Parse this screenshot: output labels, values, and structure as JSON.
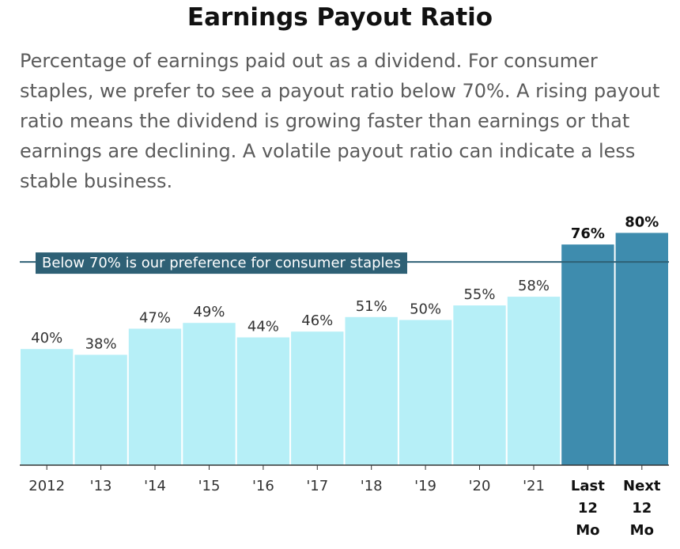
{
  "title": "Earnings Payout Ratio",
  "subtitle": "Percentage of earnings paid out as a dividend. For consumer staples, we prefer to see a payout ratio below 70%. A rising payout ratio means the dividend is growing faster than earnings or that earnings are declining. A volatile payout ratio can indicate a less stable business.",
  "colors": {
    "historical": "#b6eff7",
    "highlight": "#3e8cae",
    "reference": "#2e6075",
    "axis": "#333333"
  },
  "chart_data": {
    "type": "bar",
    "categories": [
      "2012",
      "'13",
      "'14",
      "'15",
      "'16",
      "'17",
      "'18",
      "'19",
      "'20",
      "'21",
      "Last 12 Mo",
      "Next 12 Mo"
    ],
    "values": [
      40,
      38,
      47,
      49,
      44,
      46,
      51,
      50,
      55,
      58,
      76,
      80
    ],
    "labels": [
      "40%",
      "38%",
      "47%",
      "49%",
      "44%",
      "46%",
      "51%",
      "50%",
      "55%",
      "58%",
      "76%",
      "80%"
    ],
    "highlighted": [
      false,
      false,
      false,
      false,
      false,
      false,
      false,
      false,
      false,
      false,
      true,
      true
    ],
    "reference_line": {
      "value": 70,
      "label": "Below 70% is our preference for consumer staples"
    },
    "ylim": [
      0,
      80
    ],
    "xlabel": "",
    "ylabel": "",
    "grid": false,
    "legend": "none"
  }
}
